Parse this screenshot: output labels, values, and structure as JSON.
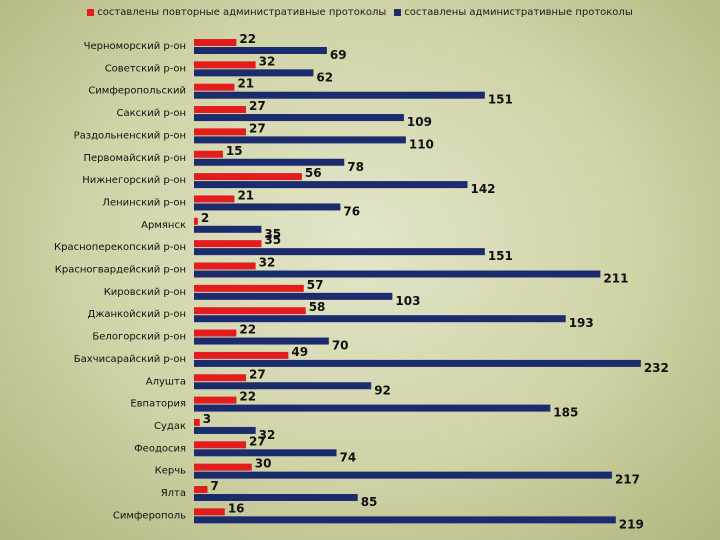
{
  "chart_data": {
    "type": "bar",
    "orientation": "horizontal",
    "legend_position": "top",
    "grid": false,
    "xlim": [
      0,
      240
    ],
    "categories": [
      "Черноморский р-он",
      "Советский р-он",
      "Симферопольский",
      "Сакский р-он",
      "Раздольненский р-он",
      "Первомайский р-он",
      "Нижнегорский р-он",
      "Ленинский р-он",
      "Армянск",
      "Красноперекопский р-он",
      "Красногвардейский р-он",
      "Кировский р-он",
      "Джанкойский р-он",
      "Белогорский р-он",
      "Бахчисарайский р-он",
      "Алушта",
      "Евпатория",
      "Судак",
      "Феодосия",
      "Керчь",
      "Ялта",
      "Симферополь"
    ],
    "series": [
      {
        "name": "составлены повторные административные протоколы",
        "color": "#e31d1d",
        "values": [
          22,
          32,
          21,
          27,
          27,
          15,
          56,
          21,
          2,
          35,
          32,
          57,
          58,
          22,
          49,
          27,
          22,
          3,
          27,
          30,
          7,
          16
        ]
      },
      {
        "name": "составлены административные протоколы",
        "color": "#1a2c6e",
        "values": [
          69,
          62,
          151,
          109,
          110,
          78,
          142,
          76,
          35,
          151,
          211,
          103,
          193,
          70,
          232,
          92,
          185,
          32,
          74,
          217,
          85,
          219
        ]
      }
    ]
  }
}
